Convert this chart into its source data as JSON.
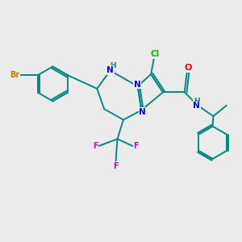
{
  "background_color": "#ebebeb",
  "atom_colors": {
    "Br": "#cc7700",
    "Cl": "#00bb00",
    "F": "#cc00cc",
    "N": "#0000cc",
    "O": "#dd0000",
    "H_label": "#008888",
    "C": "#008888"
  },
  "bond_color": "#008888",
  "figsize": [
    3.0,
    3.0
  ],
  "dpi": 100
}
